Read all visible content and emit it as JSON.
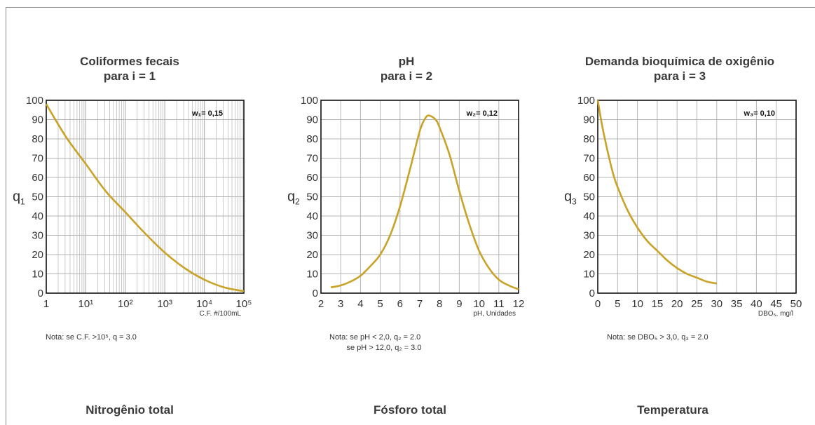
{
  "charts": [
    {
      "title1": "Coliformes fecais",
      "title2": "para i = 1",
      "ylabel": "q",
      "ysub": "1",
      "weight": "w₁= 0,15",
      "xunit": "C.F. #/100mL",
      "note": "Nota: se C.F. >10⁵, q = 3.0",
      "xticks": [
        "1",
        "10¹",
        "10²",
        "10³",
        "10⁴",
        "10⁵"
      ],
      "yticks": [
        "0",
        "10",
        "20",
        "30",
        "40",
        "50",
        "60",
        "70",
        "80",
        "90",
        "100"
      ]
    },
    {
      "title1": "pH",
      "title2": "para i = 2",
      "ylabel": "q",
      "ysub": "2",
      "weight": "w₂= 0,12",
      "xunit": "pH, Unidades",
      "note": "Nota: se pH < 2,0, q₂ = 2.0\n        se pH > 12,0, q₂ = 3.0",
      "xticks": [
        "2",
        "3",
        "4",
        "5",
        "6",
        "7",
        "8",
        "9",
        "10",
        "11",
        "12"
      ],
      "yticks": [
        "0",
        "10",
        "20",
        "30",
        "40",
        "50",
        "60",
        "70",
        "80",
        "90",
        "100"
      ]
    },
    {
      "title1": "Demanda bioquímica de oxigênio",
      "title2": "para i = 3",
      "ylabel": "q",
      "ysub": "3",
      "weight": "w₃= 0,10",
      "xunit": "DBO₅, mg/l",
      "note": "Nota: se DBO₅ > 3,0, q₃ = 2.0",
      "xticks": [
        "0",
        "5",
        "10",
        "15",
        "20",
        "25",
        "30",
        "35",
        "40",
        "45",
        "50"
      ],
      "yticks": [
        "0",
        "10",
        "20",
        "30",
        "40",
        "50",
        "60",
        "70",
        "80",
        "90",
        "100"
      ]
    }
  ],
  "bottom_titles": [
    "Nitrogênio total",
    "Fósforo total",
    "Temperatura"
  ],
  "colors": {
    "curve": "#c9a227",
    "grid": "#b5b5b5",
    "axis": "#111111"
  },
  "chart_data": [
    {
      "type": "line",
      "title": "Coliformes fecais para i = 1",
      "xlabel": "C.F. #/100mL",
      "ylabel": "q1",
      "xscale": "log",
      "xlim": [
        1,
        100000
      ],
      "ylim": [
        0,
        100
      ],
      "grid": true,
      "series": [
        {
          "x": [
            1,
            3.16,
            10,
            31.6,
            100,
            316,
            1000,
            3160,
            10000,
            31600,
            100000
          ],
          "y": [
            98,
            81,
            67,
            53,
            42,
            31,
            21,
            13,
            7,
            3,
            1
          ]
        }
      ]
    },
    {
      "type": "line",
      "title": "pH para i = 2",
      "xlabel": "pH, Unidades",
      "ylabel": "q2",
      "xlim": [
        2,
        12
      ],
      "ylim": [
        0,
        100
      ],
      "grid": true,
      "series": [
        {
          "x": [
            2.5,
            3,
            3.5,
            4,
            4.5,
            5,
            5.5,
            6,
            6.5,
            7,
            7.3,
            7.5,
            7.8,
            8,
            8.5,
            9,
            9.5,
            10,
            10.5,
            11,
            11.5,
            12
          ],
          "y": [
            3,
            4,
            6,
            9,
            14,
            20,
            30,
            45,
            64,
            84,
            91,
            92,
            90,
            86,
            72,
            53,
            36,
            22,
            13,
            7,
            4,
            2
          ]
        }
      ]
    },
    {
      "type": "line",
      "title": "Demanda bioquímica de oxigênio para i = 3",
      "xlabel": "DBO5, mg/l",
      "ylabel": "q3",
      "xlim": [
        0,
        50
      ],
      "ylim": [
        0,
        100
      ],
      "grid": true,
      "series": [
        {
          "x": [
            0,
            1,
            2,
            3,
            4,
            5,
            7.5,
            10,
            12.5,
            15,
            17.5,
            20,
            22.5,
            25,
            27.5,
            30
          ],
          "y": [
            100,
            88,
            78,
            69,
            61,
            55,
            43,
            34,
            27,
            22,
            17,
            13,
            10,
            8,
            6,
            5
          ]
        }
      ]
    }
  ]
}
